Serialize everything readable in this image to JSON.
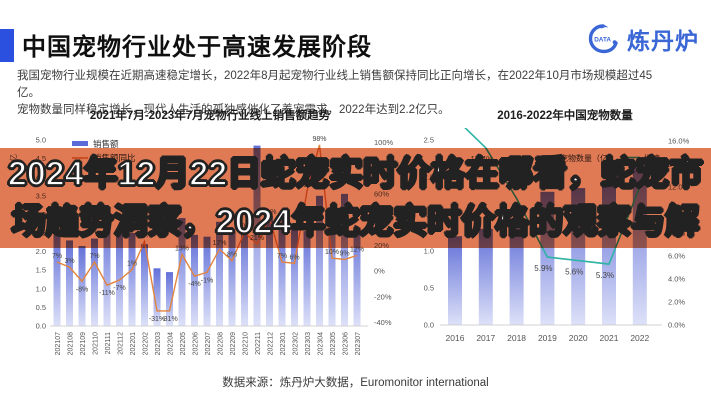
{
  "header": {
    "title": "中国宠物行业处于高速发展阶段",
    "logo": {
      "name": "炼丹炉",
      "badge": "DATA"
    }
  },
  "intro": {
    "line1": "我国宠物行业规模在近期高速稳定增长，2022年8月起宠物行业线上销售额保持同比正向增长，在2022年10月市场规模超过45亿。",
    "line2": "宠物数量同样稳定增长，现代人生活的孤独感催化了养宠需求，2022年达到2.2亿只。"
  },
  "overlay": {
    "line1": "2024年12月22日蛇宠实时价格在哪看，蛇宠市",
    "line2": "场趋势洞察，2024年蛇宠实时价格的观察与解"
  },
  "source": "数据来源：炼丹炉大数据，Euromonitor international",
  "colors": {
    "accent_blue": "#2B50E0",
    "logo_blue": "#3A66D6",
    "bar_top": "#6270D8",
    "bar_bottom": "#DDE1F8",
    "legend_bar": "#5B6BD8",
    "line_orange": "#E2833D",
    "line_teal": "#2EB3A4",
    "overlay_salmon": "#DF7A55",
    "axis_text": "#555555",
    "label_text": "#444444"
  },
  "chart_data": [
    {
      "type": "bar+line",
      "title": "2021年7月-2023年7月宠物行业线上销售额趋势",
      "ylabel": "亿",
      "legend_position": "top-left-inside",
      "grid": false,
      "categories": [
        "202107",
        "202108",
        "202109",
        "202110",
        "202111",
        "202112",
        "202201",
        "202202",
        "202203",
        "202204",
        "202205",
        "202206",
        "202207",
        "202208",
        "202209",
        "202210",
        "202211",
        "202212",
        "202301",
        "202302",
        "202303",
        "202304",
        "202305",
        "202306",
        "202307"
      ],
      "series": [
        {
          "name": "销售额",
          "type": "bar",
          "values": [
            2.45,
            2.3,
            2.15,
            2.35,
            2.85,
            2.55,
            2.5,
            2.2,
            1.55,
            1.45,
            2.9,
            2.45,
            2.4,
            2.8,
            2.55,
            2.65,
            4.85,
            2.95,
            2.65,
            2.6,
            2.55,
            3.5,
            3.2,
            3.55,
            2.65
          ]
        },
        {
          "name": "销售额同比",
          "type": "line",
          "unit": "%",
          "values": [
            7,
            3,
            -8,
            7,
            -11,
            -7,
            1,
            23,
            -31,
            -31,
            13,
            -4,
            -1,
            17,
            8,
            30,
            21,
            41,
            7,
            6,
            62,
            98,
            10,
            9,
            12
          ]
        }
      ],
      "ylim_left": [
        0,
        5
      ],
      "ytick_step_left": 0.5,
      "ylim_right": [
        -40,
        100
      ],
      "ytick_step_right": 20
    },
    {
      "type": "bar+line",
      "title": "2016-2022年中国宠物数量",
      "legend_position": "top-right-inside",
      "grid": false,
      "categories": [
        "2016",
        "2017",
        "2018",
        "2019",
        "2020",
        "2021",
        "2022"
      ],
      "series": [
        {
          "name": "宠物数量（亿）",
          "type": "bar",
          "values": [
            1.2,
            1.3,
            1.35,
            1.8,
            1.85,
            1.9,
            2.2
          ]
        },
        {
          "name": "增速",
          "type": "line",
          "unit": "%",
          "values": [
            18,
            15.4,
            11,
            5.9,
            5.6,
            5.3,
            12
          ],
          "labels": [
            "",
            "15.4%",
            "",
            "5.9%",
            "5.6%",
            "5.3%",
            ""
          ]
        }
      ],
      "ylim_left": [
        0,
        2.5
      ],
      "ytick_step_left": 0.5,
      "ylim_right": [
        0,
        16
      ],
      "ytick_step_right": 2
    }
  ]
}
